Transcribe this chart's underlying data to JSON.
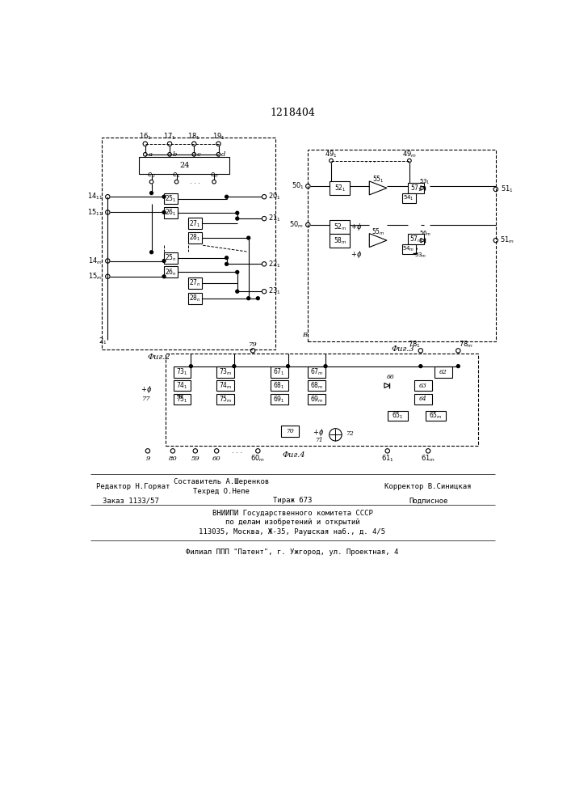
{
  "title": "1218404",
  "fig2_label": "Фиг.2",
  "fig3_label": "Фиг.3",
  "fig4_label": "Фиг.4",
  "bg_color": "#ffffff",
  "line_color": "#000000",
  "footer": {
    "editor": "Редактор Н.Горяат",
    "composer": "Составитель А.Шеренков",
    "techred": "Техред О.Непе",
    "corrector": "Корректор В.Синицкая",
    "order": "Заказ 1133/57",
    "tirazh": "Тираж 673",
    "podpisnoe": "Подписное",
    "org1": "ВНИИПИ Государственного комитета СССР",
    "org2": "по делам изобретений и открытий",
    "addr": "113035, Москва, Ж-35, Раушская наб., д. 4/5",
    "filial": "Филиал ППП \"Патент\", г. Ужгород, ул. Проектная, 4"
  }
}
